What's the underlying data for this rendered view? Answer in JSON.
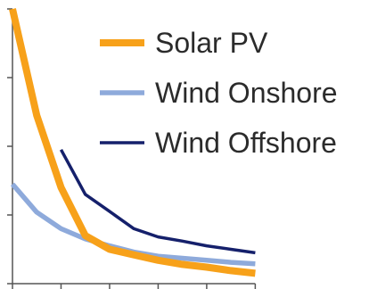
{
  "chart_data": {
    "type": "line",
    "title": "",
    "xlabel": "",
    "ylabel": "",
    "x": [
      0,
      1,
      2,
      3,
      4,
      5,
      6,
      7,
      8,
      9,
      10
    ],
    "xlim": [
      0,
      10.5
    ],
    "ylim": [
      0,
      4
    ],
    "x_ticks": [
      0,
      2,
      4,
      6,
      8,
      10
    ],
    "y_ticks": [
      0,
      1,
      2,
      3,
      4
    ],
    "grid": false,
    "legend_position": "top-right",
    "series": [
      {
        "name": "Solar PV",
        "color": "#f7a11a",
        "x": [
          0,
          1,
          2,
          3,
          4,
          5,
          6,
          7,
          8,
          9,
          10
        ],
        "values": [
          4.0,
          2.45,
          1.4,
          0.7,
          0.5,
          0.42,
          0.34,
          0.28,
          0.24,
          0.19,
          0.15
        ]
      },
      {
        "name": "Wind Onshore",
        "color": "#8eaadb",
        "x": [
          0,
          1,
          2,
          3,
          4,
          5,
          6,
          7,
          8,
          9,
          10
        ],
        "values": [
          1.45,
          1.04,
          0.8,
          0.65,
          0.55,
          0.46,
          0.4,
          0.37,
          0.34,
          0.31,
          0.29
        ]
      },
      {
        "name": "Wind Offshore",
        "color": "#15206b",
        "x": [
          2,
          3,
          4,
          5,
          6,
          7,
          8,
          9,
          10
        ],
        "values": [
          1.95,
          1.3,
          1.05,
          0.8,
          0.68,
          0.62,
          0.55,
          0.5,
          0.45
        ]
      }
    ]
  }
}
